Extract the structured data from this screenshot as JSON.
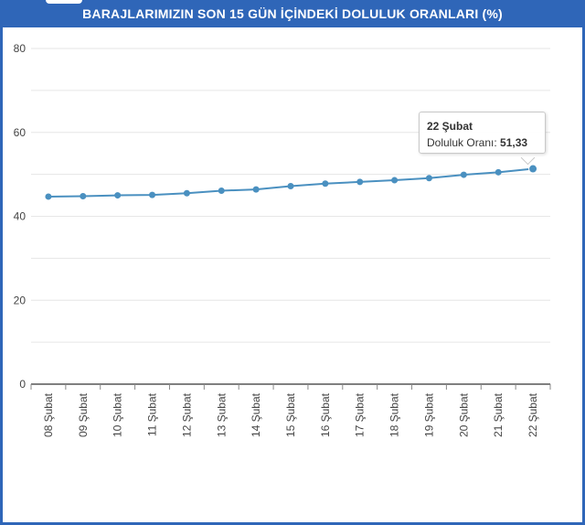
{
  "title": "BARAJLARIMIZIN SON 15 GÜN İÇİNDEKİ DOLULUK ORANLARI (%)",
  "colors": {
    "title_bar": "#2f66b8",
    "line": "#4a90c0",
    "grid": "#e6e6e6",
    "axis": "#555555"
  },
  "tooltip": {
    "title": "22 Şubat",
    "label": "Doluluk Oranı: ",
    "value": "51,33"
  },
  "chart_data": {
    "type": "line",
    "categories": [
      "08 Şubat",
      "09 Şubat",
      "10 Şubat",
      "11 Şubat",
      "12 Şubat",
      "13 Şubat",
      "14 Şubat",
      "15 Şubat",
      "16 Şubat",
      "17 Şubat",
      "18 Şubat",
      "19 Şubat",
      "20 Şubat",
      "21 Şubat",
      "22 Şubat"
    ],
    "series": [
      {
        "name": "Doluluk Oranı",
        "values": [
          44.7,
          44.8,
          45.0,
          45.1,
          45.5,
          46.1,
          46.4,
          47.2,
          47.8,
          48.2,
          48.6,
          49.1,
          49.9,
          50.5,
          51.33
        ]
      }
    ],
    "yticks": [
      "0",
      "20",
      "40",
      "60",
      "80"
    ],
    "ylim": [
      0,
      80
    ],
    "grid": true,
    "legend": "none"
  }
}
